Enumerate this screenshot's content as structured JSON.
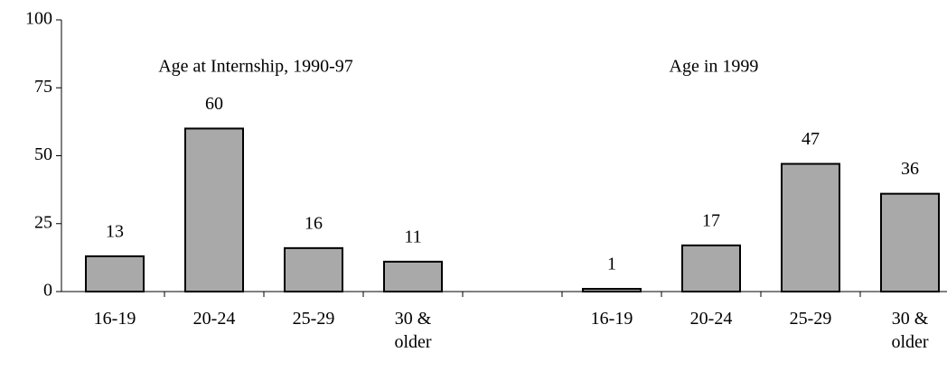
{
  "chart_data": {
    "type": "bar",
    "annotations": [
      "Age at Internship, 1990-97",
      "Age in 1999"
    ],
    "categories": [
      "16-19",
      "20-24",
      "25-29",
      "30 & older",
      null,
      "16-19",
      "20-24",
      "25-29",
      "30 & older"
    ],
    "values": [
      13,
      60,
      16,
      11,
      null,
      1,
      17,
      47,
      36
    ],
    "color": "#a9a9a9",
    "ylim": [
      0,
      100
    ],
    "yticks": [
      0,
      25,
      50,
      75,
      100
    ],
    "grid": false
  }
}
